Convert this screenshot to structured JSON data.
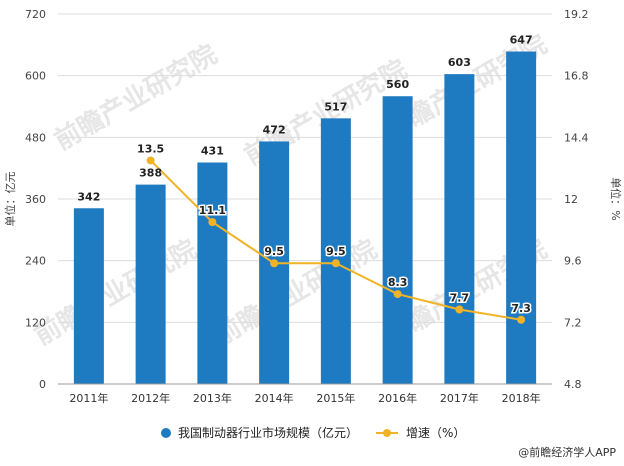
{
  "chart_data": {
    "type": "bar",
    "categories": [
      "2011年",
      "2012年",
      "2013年",
      "2014年",
      "2015年",
      "2016年",
      "2017年",
      "2018年"
    ],
    "series": [
      {
        "name": "我国制动器行业市场规模（亿元）",
        "type": "bar",
        "axis": "left",
        "values": [
          342,
          388,
          431,
          472,
          517,
          560,
          603,
          647
        ]
      },
      {
        "name": "增速（%）",
        "type": "line",
        "axis": "right",
        "values": [
          null,
          13.5,
          11.1,
          9.5,
          9.5,
          8.3,
          7.7,
          7.3
        ]
      }
    ],
    "ylabel": "单位：亿元",
    "y2label": "单位：%",
    "ylim": [
      0,
      720
    ],
    "yticks": [
      "0",
      "120",
      "240",
      "360",
      "480",
      "600",
      "720"
    ],
    "y2lim": [
      4.8,
      19.2
    ],
    "y2ticks": [
      "4.8",
      "7.2",
      "9.6",
      "12",
      "14.4",
      "16.8",
      "19.2"
    ],
    "grid": true,
    "legend_position": "bottom",
    "colors": {
      "bar": "#1f7bc1",
      "line": "#f0b327"
    }
  },
  "watermark": "前瞻产业研究院",
  "credit": "@前瞻经济学人APP"
}
